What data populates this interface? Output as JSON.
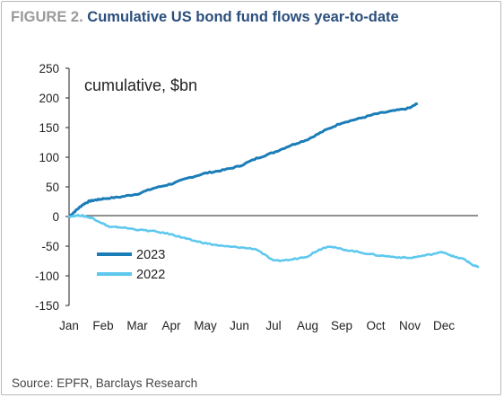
{
  "figure_label": "FIGURE 2.",
  "title": "Cumulative US bond fund flows year-to-date",
  "source": "Source: EPFR, Barclays Research",
  "chart_data": {
    "type": "line",
    "annotation": "cumulative, $bn",
    "x_tick_labels": [
      "Jan",
      "Feb",
      "Mar",
      "Apr",
      "May",
      "Jun",
      "Jul",
      "Aug",
      "Sep",
      "Oct",
      "Nov",
      "Dec"
    ],
    "y_ticks": [
      250,
      200,
      150,
      100,
      50,
      0,
      -50,
      -100,
      -150
    ],
    "ylim": [
      -150,
      250
    ],
    "grid": false,
    "legend_position": "lower-left",
    "series": [
      {
        "name": "2023",
        "color": "#1b7db8",
        "x": [
          0,
          0.2,
          0.4,
          0.6,
          0.8,
          1,
          1.5,
          2,
          2.5,
          3,
          3.5,
          4,
          4.5,
          5,
          5.5,
          6,
          6.5,
          7,
          7.5,
          8,
          8.5,
          9,
          9.5,
          10,
          10.2
        ],
        "y": [
          0,
          10,
          20,
          26,
          28,
          30,
          33,
          38,
          48,
          55,
          65,
          73,
          78,
          85,
          98,
          108,
          120,
          130,
          145,
          158,
          165,
          173,
          178,
          183,
          190
        ]
      },
      {
        "name": "2022",
        "color": "#5ec8ee",
        "x": [
          0,
          0.3,
          0.5,
          0.7,
          1,
          1.2,
          1.5,
          2,
          2.5,
          3,
          3.3,
          3.6,
          4,
          4.5,
          5,
          5.5,
          6,
          6.5,
          7,
          7.3,
          7.6,
          8,
          8.5,
          9,
          9.5,
          10,
          10.5,
          11,
          11.3,
          11.6,
          11.85,
          12
        ],
        "y": [
          0,
          2,
          0,
          -3,
          -12,
          -18,
          -18,
          -22,
          -25,
          -30,
          -35,
          -40,
          -45,
          -50,
          -52,
          -55,
          -75,
          -73,
          -67,
          -57,
          -50,
          -55,
          -60,
          -65,
          -68,
          -70,
          -65,
          -60,
          -68,
          -72,
          -82,
          -85
        ]
      }
    ]
  }
}
